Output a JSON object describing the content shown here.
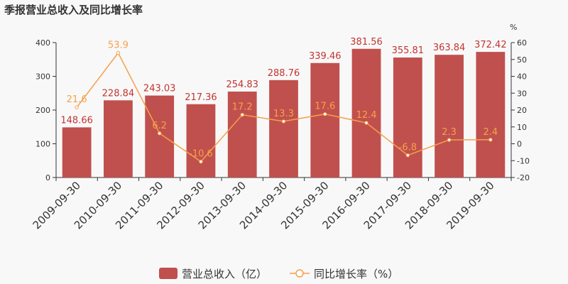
{
  "chart_data": {
    "type": "bar",
    "title": "季报营业总收入及同比增长率",
    "categories": [
      "2009-09-30",
      "2010-09-30",
      "2011-09-30",
      "2012-09-30",
      "2013-09-30",
      "2014-09-30",
      "2015-09-30",
      "2016-09-30",
      "2017-09-30",
      "2018-09-30",
      "2019-09-30"
    ],
    "series": [
      {
        "name": "营业总收入（亿）",
        "type": "bar",
        "axis": "left",
        "color": "#c0504d",
        "values": [
          148.66,
          228.84,
          243.03,
          217.36,
          254.83,
          288.76,
          339.46,
          381.56,
          355.81,
          363.84,
          372.42
        ]
      },
      {
        "name": "同比增长率（%）",
        "type": "line",
        "axis": "right",
        "color": "#f5a04b",
        "values": [
          21.6,
          53.9,
          6.2,
          -10.6,
          17.2,
          13.3,
          17.6,
          12.4,
          -6.8,
          2.3,
          2.4
        ]
      }
    ],
    "ylim_left": [
      0,
      400
    ],
    "yticks_left": [
      0,
      100,
      200,
      300,
      400
    ],
    "ylim_right": [
      -20,
      60
    ],
    "yticks_right": [
      -20,
      -10,
      0,
      10,
      20,
      30,
      40,
      50,
      60
    ],
    "ylabel_right": "%",
    "grid": false,
    "legend_position": "bottom"
  }
}
